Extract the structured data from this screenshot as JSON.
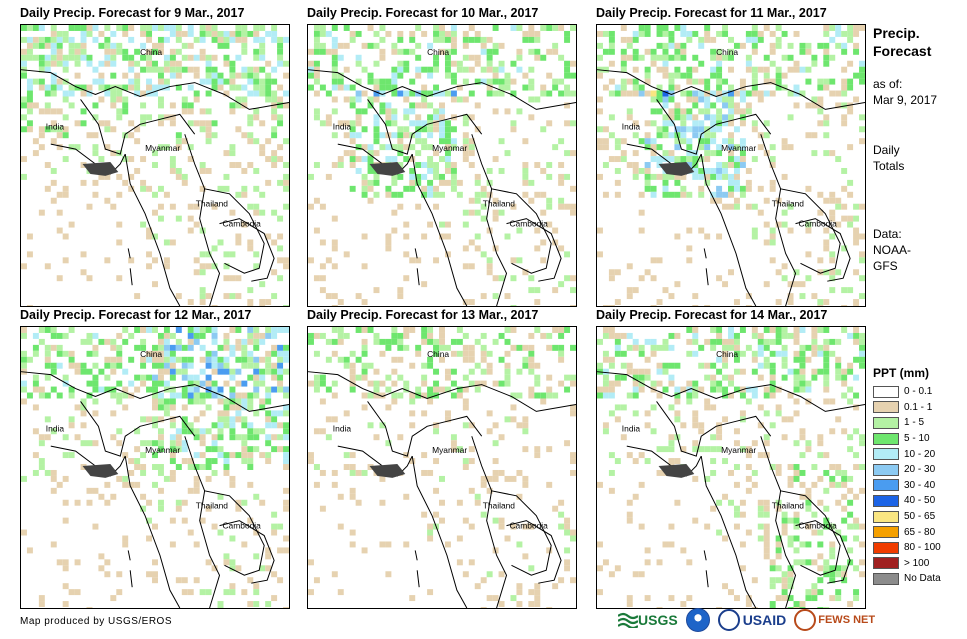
{
  "panels": [
    {
      "title": "Daily Precip. Forecast for 9 Mar., 2017",
      "intensity": 0.35,
      "wet_region": "north"
    },
    {
      "title": "Daily Precip. Forecast for 10 Mar., 2017",
      "intensity": 0.7,
      "wet_region": "bengal"
    },
    {
      "title": "Daily Precip. Forecast for 11 Mar., 2017",
      "intensity": 0.9,
      "wet_region": "bengal"
    },
    {
      "title": "Daily Precip. Forecast for 12 Mar., 2017",
      "intensity": 0.6,
      "wet_region": "northeast"
    },
    {
      "title": "Daily Precip. Forecast for 13 Mar., 2017",
      "intensity": 0.2,
      "wet_region": "dry"
    },
    {
      "title": "Daily Precip. Forecast for 14 Mar., 2017",
      "intensity": 0.3,
      "wet_region": "southeast"
    }
  ],
  "place_labels": {
    "china": "China",
    "india": "India",
    "myanmar": "Myanmar",
    "thailand": "Thailand",
    "cambodia": "Cambodia"
  },
  "side": {
    "title_line1": "Precip.",
    "title_line2": "Forecast",
    "asof_line1": "as of:",
    "asof_line2": "Mar 9, 2017",
    "totals_line1": "Daily",
    "totals_line2": "Totals",
    "data_line1": "Data:",
    "data_line2": "NOAA-",
    "data_line3": "GFS"
  },
  "legend": {
    "title": "PPT (mm)",
    "items": [
      {
        "label": "0 - 0.1",
        "color": "#ffffff"
      },
      {
        "label": "0.1 - 1",
        "color": "#e6d2b0"
      },
      {
        "label": "1 - 5",
        "color": "#b4f2a4"
      },
      {
        "label": "5 - 10",
        "color": "#6ee66e"
      },
      {
        "label": "10 - 20",
        "color": "#b2ecf6"
      },
      {
        "label": "20 - 30",
        "color": "#8ccaf2"
      },
      {
        "label": "30 - 40",
        "color": "#4a9cf0"
      },
      {
        "label": "40 - 50",
        "color": "#1c64e6"
      },
      {
        "label": "50 - 65",
        "color": "#fae682"
      },
      {
        "label": "65 - 80",
        "color": "#f5a000"
      },
      {
        "label": "80 - 100",
        "color": "#f03c00"
      },
      {
        "label": "> 100",
        "color": "#a02020"
      },
      {
        "label": "No Data",
        "color": "#8c8c8c"
      }
    ]
  },
  "credit": "Map produced by USGS/EROS",
  "logos": {
    "usgs": "USGS",
    "usaid": "USAID",
    "fewsnet": "FEWS NET"
  }
}
